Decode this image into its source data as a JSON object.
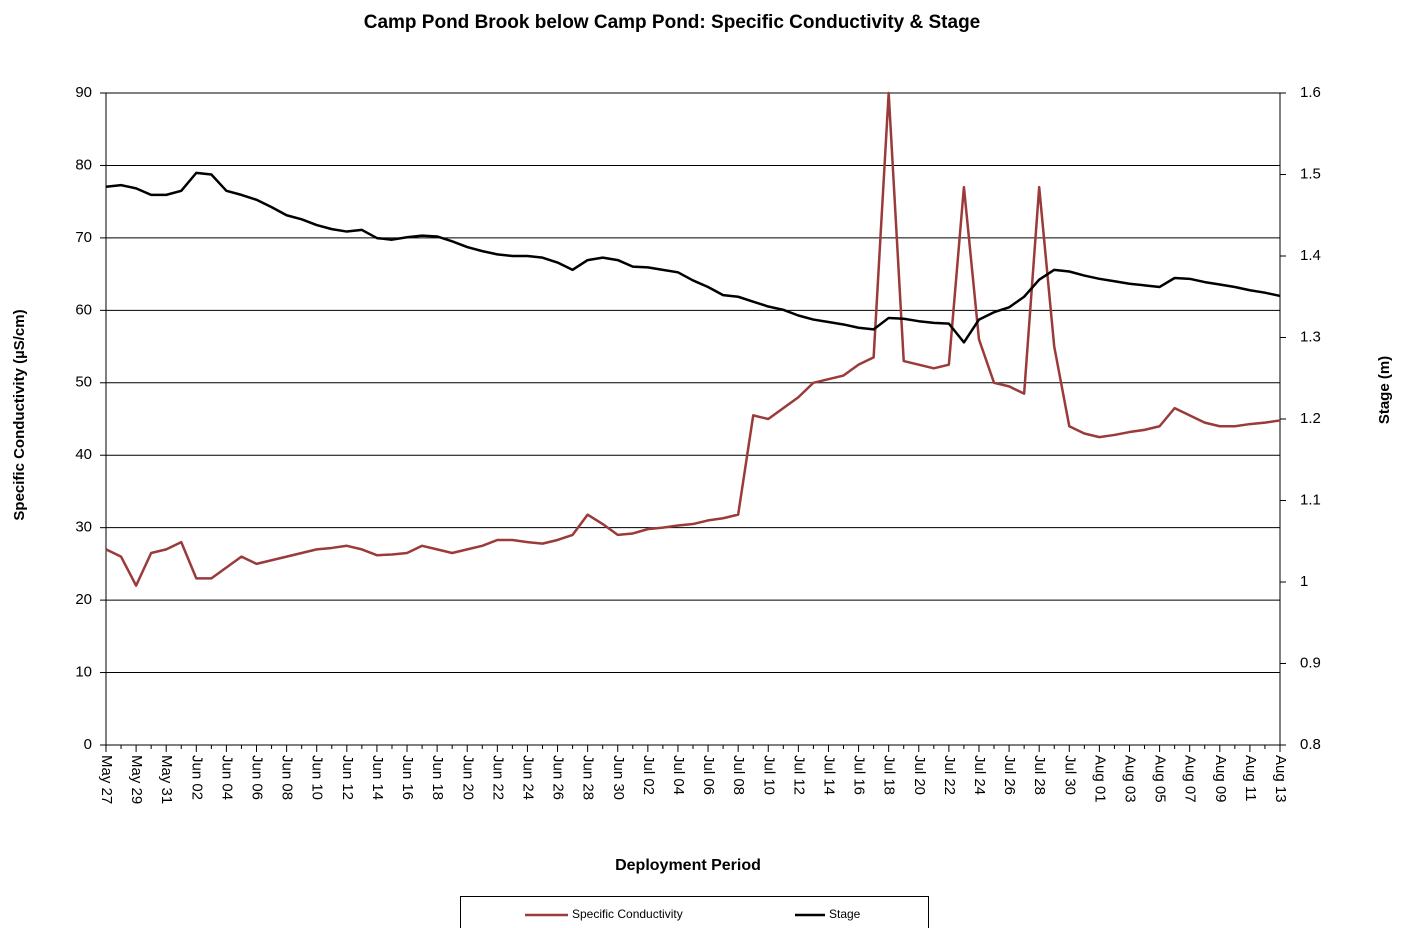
{
  "chart_data": {
    "type": "line",
    "title": "Camp Pond Brook below Camp Pond: Specific Conductivity & Stage",
    "x_label": "Deployment Period",
    "y_label": "Specific Conductivity (µS/cm)",
    "y2_label": "Stage (m)",
    "categories": [
      "May 27",
      null,
      "May 29",
      null,
      "May 31",
      null,
      "Jun 02",
      null,
      "Jun 04",
      null,
      "Jun 06",
      null,
      "Jun 08",
      null,
      "Jun 10",
      null,
      "Jun 12",
      null,
      "Jun 14",
      null,
      "Jun 16",
      null,
      "Jun 18",
      null,
      "Jun 20",
      null,
      "Jun 22",
      null,
      "Jun 24",
      null,
      "Jun 26",
      null,
      "Jun 28",
      null,
      "Jun 30",
      null,
      "Jul 02",
      null,
      "Jul 04",
      null,
      "Jul 06",
      null,
      "Jul 08",
      null,
      "Jul 10",
      null,
      "Jul 12",
      null,
      "Jul 14",
      null,
      "Jul 16",
      null,
      "Jul 18",
      null,
      "Jul 20",
      null,
      "Jul 22",
      null,
      "Jul 24",
      null,
      "Jul 26",
      null,
      "Jul 28",
      null,
      "Jul 30",
      null,
      "Aug 01",
      null,
      "Aug 03",
      null,
      "Aug 05",
      null,
      "Aug 07",
      null,
      "Aug 09",
      null,
      "Aug 11",
      null,
      "Aug 13"
    ],
    "series": [
      {
        "name": "Specific Conductivity",
        "color": "#9b3a3a",
        "values": [
          27,
          26,
          22,
          26.5,
          27,
          28,
          23,
          23,
          24.5,
          26,
          25,
          25.5,
          26,
          26.5,
          27,
          27.2,
          27.5,
          27,
          26.2,
          26.3,
          26.5,
          27.5,
          27,
          26.5,
          27,
          27.5,
          28.3,
          28.3,
          28,
          27.8,
          28.3,
          29,
          31.8,
          30.5,
          29,
          29.2,
          29.8,
          30,
          30.3,
          30.5,
          31,
          31.3,
          31.8,
          45.5,
          45,
          46.5,
          48,
          50,
          50.5,
          51,
          52.5,
          53.5,
          90,
          53,
          52.5,
          52,
          52.5,
          77,
          56,
          50,
          49.5,
          48.5,
          77,
          55,
          44,
          43,
          42.5,
          42.8,
          43.2,
          43.5,
          44,
          46.5,
          45.5,
          44.5,
          44,
          44,
          44.3,
          44.5,
          44.8
        ]
      },
      {
        "name": "Stage",
        "color": "#000000",
        "axis": "y2",
        "values": [
          1.485,
          1.487,
          1.483,
          1.475,
          1.475,
          1.48,
          1.502,
          1.5,
          1.48,
          1.475,
          1.469,
          1.46,
          1.45,
          1.445,
          1.438,
          1.433,
          1.43,
          1.432,
          1.422,
          1.42,
          1.423,
          1.425,
          1.424,
          1.418,
          1.411,
          1.406,
          1.402,
          1.4,
          1.4,
          1.398,
          1.392,
          1.383,
          1.395,
          1.398,
          1.395,
          1.387,
          1.386,
          1.383,
          1.38,
          1.37,
          1.362,
          1.352,
          1.35,
          1.344,
          1.338,
          1.334,
          1.327,
          1.322,
          1.319,
          1.316,
          1.312,
          1.31,
          1.324,
          1.323,
          1.32,
          1.318,
          1.317,
          1.294,
          1.322,
          1.331,
          1.337,
          1.35,
          1.371,
          1.383,
          1.381,
          1.376,
          1.372,
          1.369,
          1.366,
          1.364,
          1.362,
          1.373,
          1.372,
          1.368,
          1.365,
          1.362,
          1.358,
          1.355,
          1.351
        ]
      }
    ],
    "ylim": [
      0,
      90
    ],
    "yticks": [
      0,
      10,
      20,
      30,
      40,
      50,
      60,
      70,
      80,
      90
    ],
    "y2lim": [
      0.8,
      1.6
    ],
    "y2ticks": [
      0.8,
      0.9,
      1,
      1.1,
      1.2,
      1.3,
      1.4,
      1.5,
      1.6
    ],
    "grid": true,
    "legend": "bottom"
  }
}
